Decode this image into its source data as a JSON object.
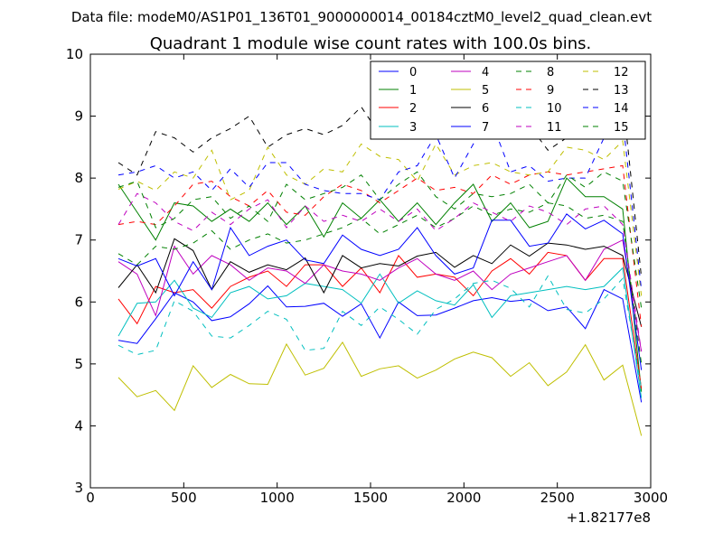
{
  "suptitle": "Data file: modeM0/AS1P01_136T01_9000000014_00184cztM0_level2_quad_clean.evt",
  "chart_data": {
    "type": "line",
    "title": "Quadrant 1 module wise count rates with 100.0s bins.",
    "xlabel": "",
    "ylabel": "",
    "x_offset_label": "+1.82177e8",
    "xlim": [
      0,
      3000
    ],
    "ylim": [
      3,
      10
    ],
    "xticks": [
      0,
      500,
      1000,
      1500,
      2000,
      2500,
      3000
    ],
    "yticks": [
      3,
      4,
      5,
      6,
      7,
      8,
      9,
      10
    ],
    "grid": false,
    "legend_position": "top-right",
    "x": [
      150,
      250,
      350,
      450,
      550,
      650,
      750,
      850,
      950,
      1050,
      1150,
      1250,
      1350,
      1450,
      1550,
      1650,
      1750,
      1850,
      1950,
      2050,
      2150,
      2250,
      2350,
      2450,
      2550,
      2650,
      2750,
      2850,
      2950
    ],
    "series": [
      {
        "name": "0",
        "color": "#0000ff",
        "dash": "solid",
        "values": [
          5.38,
          5.33,
          5.73,
          6.15,
          6.0,
          5.7,
          5.76,
          5.97,
          6.26,
          5.92,
          5.93,
          5.98,
          5.77,
          5.97,
          5.42,
          6.0,
          5.78,
          5.79,
          5.9,
          6.02,
          6.07,
          6.01,
          6.04,
          5.86,
          5.92,
          5.57,
          6.2,
          6.05,
          4.38
        ]
      },
      {
        "name": "1",
        "color": "#008000",
        "dash": "solid",
        "values": [
          7.9,
          7.45,
          7.0,
          7.6,
          7.55,
          7.3,
          7.5,
          7.3,
          7.6,
          7.25,
          7.55,
          7.05,
          7.6,
          7.35,
          7.65,
          7.3,
          7.6,
          7.25,
          7.6,
          7.9,
          7.3,
          7.6,
          7.2,
          7.3,
          8.0,
          7.7,
          7.7,
          7.5,
          4.55
        ]
      },
      {
        "name": "2",
        "color": "#ff0000",
        "dash": "solid",
        "values": [
          6.05,
          5.65,
          6.25,
          6.15,
          6.2,
          5.9,
          6.25,
          6.4,
          6.5,
          6.25,
          6.6,
          6.6,
          6.25,
          6.55,
          6.15,
          6.75,
          6.4,
          6.45,
          6.4,
          6.1,
          6.5,
          6.7,
          6.45,
          6.8,
          6.75,
          6.35,
          6.7,
          6.7,
          4.6
        ]
      },
      {
        "name": "3",
        "color": "#00bfbf",
        "dash": "solid",
        "values": [
          5.45,
          5.98,
          6.0,
          6.35,
          5.9,
          5.75,
          6.15,
          6.25,
          6.05,
          6.1,
          6.3,
          6.25,
          6.2,
          5.98,
          6.45,
          5.98,
          6.18,
          6.02,
          5.95,
          6.28,
          5.75,
          6.1,
          6.15,
          6.2,
          6.25,
          6.2,
          6.25,
          6.55,
          4.45
        ]
      },
      {
        "name": "4",
        "color": "#bf00bf",
        "dash": "solid",
        "values": [
          6.65,
          6.45,
          5.78,
          6.9,
          6.45,
          6.75,
          6.6,
          6.35,
          6.55,
          6.5,
          6.3,
          6.6,
          6.5,
          6.45,
          6.35,
          6.55,
          6.7,
          6.45,
          6.35,
          6.5,
          6.2,
          6.45,
          6.55,
          6.65,
          6.75,
          6.35,
          6.85,
          7.0,
          5.2
        ]
      },
      {
        "name": "5",
        "color": "#bfbf00",
        "dash": "solid",
        "values": [
          4.78,
          4.47,
          4.57,
          4.25,
          4.97,
          4.62,
          4.83,
          4.68,
          4.67,
          5.32,
          4.82,
          4.93,
          5.35,
          4.8,
          4.92,
          4.97,
          4.77,
          4.9,
          5.08,
          5.19,
          5.1,
          4.8,
          5.02,
          4.65,
          4.87,
          5.31,
          4.74,
          4.98,
          3.84
        ]
      },
      {
        "name": "6",
        "color": "#000000",
        "dash": "solid",
        "values": [
          6.23,
          6.6,
          6.15,
          7.02,
          6.83,
          6.2,
          6.65,
          6.48,
          6.6,
          6.52,
          6.71,
          6.15,
          6.75,
          6.55,
          6.62,
          6.58,
          6.74,
          6.8,
          6.56,
          6.75,
          6.62,
          6.92,
          6.74,
          6.95,
          6.92,
          6.85,
          6.9,
          6.75,
          5.6
        ]
      },
      {
        "name": "7",
        "color": "#0000ff",
        "dash": "solid",
        "values": [
          6.7,
          6.58,
          6.7,
          6.1,
          6.65,
          6.2,
          7.2,
          6.75,
          6.9,
          7.0,
          6.68,
          6.62,
          7.08,
          6.85,
          6.75,
          6.85,
          7.2,
          6.75,
          6.45,
          6.55,
          7.32,
          7.32,
          6.9,
          6.95,
          7.42,
          7.18,
          7.32,
          7.1,
          4.9
        ]
      },
      {
        "name": "8",
        "color": "#008000",
        "dash": "dashed",
        "values": [
          6.78,
          6.6,
          6.9,
          6.85,
          6.95,
          7.15,
          6.85,
          7.0,
          7.1,
          6.95,
          7.0,
          7.1,
          7.2,
          7.35,
          7.1,
          7.25,
          7.4,
          7.2,
          7.35,
          7.55,
          7.4,
          7.5,
          7.45,
          7.6,
          7.55,
          7.35,
          7.4,
          7.3,
          5.0
        ]
      },
      {
        "name": "9",
        "color": "#ff0000",
        "dash": "dashed",
        "values": [
          7.25,
          7.3,
          7.25,
          7.55,
          7.9,
          7.95,
          7.7,
          7.55,
          7.8,
          7.45,
          7.4,
          7.7,
          7.9,
          7.8,
          7.6,
          7.8,
          8.0,
          7.8,
          7.85,
          7.75,
          8.05,
          7.9,
          8.05,
          8.1,
          8.05,
          8.1,
          8.15,
          8.2,
          5.6
        ]
      },
      {
        "name": "10",
        "color": "#00bfbf",
        "dash": "dashed",
        "values": [
          5.3,
          5.15,
          5.22,
          6.02,
          5.85,
          5.45,
          5.42,
          5.62,
          5.85,
          5.72,
          5.22,
          5.25,
          5.85,
          5.62,
          5.92,
          5.72,
          5.48,
          5.88,
          6.05,
          6.3,
          6.35,
          6.22,
          5.92,
          6.42,
          5.88,
          5.82,
          6.05,
          6.38,
          4.6
        ]
      },
      {
        "name": "11",
        "color": "#bf00bf",
        "dash": "dashed",
        "values": [
          7.25,
          7.75,
          7.6,
          7.3,
          7.15,
          7.45,
          7.25,
          7.5,
          7.65,
          7.2,
          7.55,
          7.3,
          7.4,
          7.3,
          7.5,
          7.3,
          7.5,
          7.15,
          7.35,
          7.6,
          7.45,
          7.3,
          7.55,
          7.45,
          7.25,
          7.5,
          7.55,
          7.25,
          5.2
        ]
      },
      {
        "name": "12",
        "color": "#bfbf00",
        "dash": "dashed",
        "values": [
          7.82,
          7.95,
          7.8,
          8.1,
          8.0,
          8.45,
          7.65,
          7.8,
          8.5,
          8.05,
          7.9,
          8.15,
          8.1,
          8.55,
          8.35,
          8.3,
          7.95,
          8.55,
          8.05,
          8.2,
          8.25,
          8.1,
          8.05,
          8.1,
          8.5,
          8.45,
          8.3,
          8.6,
          6.1
        ]
      },
      {
        "name": "13",
        "color": "#000000",
        "dash": "dashed",
        "values": [
          8.25,
          8.05,
          8.75,
          8.65,
          8.42,
          8.65,
          8.8,
          9.0,
          8.5,
          8.7,
          8.8,
          8.7,
          8.85,
          9.15,
          8.7,
          8.95,
          9.05,
          8.95,
          9.1,
          9.05,
          9.3,
          9.45,
          8.85,
          8.45,
          8.65,
          8.7,
          8.9,
          9.3,
          6.4
        ]
      },
      {
        "name": "14",
        "color": "#0000ff",
        "dash": "dashed",
        "values": [
          8.05,
          8.1,
          8.2,
          8.0,
          8.1,
          7.8,
          8.15,
          7.85,
          8.25,
          8.25,
          7.9,
          7.8,
          7.75,
          7.75,
          7.65,
          8.1,
          8.2,
          8.7,
          8.0,
          8.55,
          8.9,
          8.1,
          8.2,
          7.95,
          8.0,
          8.0,
          8.65,
          8.95,
          6.2
        ]
      },
      {
        "name": "15",
        "color": "#008000",
        "dash": "dashed",
        "values": [
          7.85,
          7.95,
          7.2,
          7.35,
          7.65,
          7.7,
          7.35,
          7.55,
          7.3,
          7.9,
          7.65,
          7.75,
          7.85,
          8.05,
          7.65,
          7.9,
          8.1,
          7.7,
          7.5,
          7.75,
          7.7,
          7.75,
          7.9,
          7.6,
          8.05,
          7.85,
          8.1,
          7.95,
          5.9
        ]
      }
    ]
  }
}
